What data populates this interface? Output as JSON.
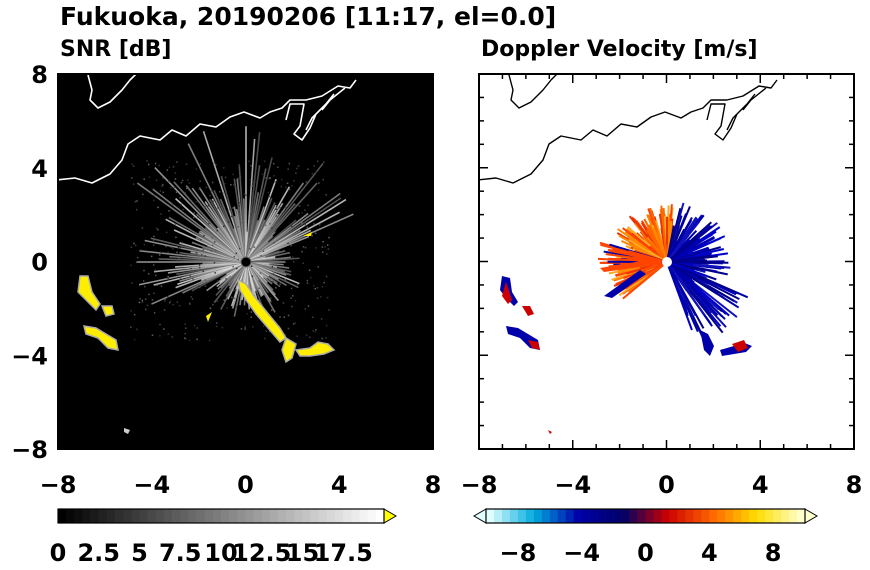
{
  "figure_title": "Fukuoka, 20190206 [11:17, el=0.0]",
  "chart_data": [
    {
      "type": "heatmap",
      "title": "SNR [dB]",
      "xlim": [
        -8,
        8
      ],
      "ylim": [
        -8,
        8
      ],
      "x_ticks": [
        -8,
        -4,
        0,
        4,
        8
      ],
      "y_ticks": [
        -8,
        -4,
        0,
        4,
        8
      ],
      "background": "#000000",
      "colorbar": {
        "ticks": [
          "0",
          "2.5",
          "5",
          "7.5",
          "10",
          "12.5",
          "15",
          "17.5"
        ],
        "range": [
          0,
          20
        ],
        "extend": "max",
        "colors": [
          "#000000",
          "#ffffff",
          "#ffff00"
        ]
      }
    },
    {
      "type": "heatmap",
      "title": "Doppler Velocity [m/s]",
      "xlim": [
        -8,
        8
      ],
      "ylim": [
        -8,
        8
      ],
      "x_ticks": [
        -8,
        -4,
        0,
        4,
        8
      ],
      "y_ticks": [
        -8,
        -4,
        0,
        4,
        8
      ],
      "background": "#ffffff",
      "colorbar": {
        "ticks": [
          "−8",
          "−4",
          "0",
          "4",
          "8"
        ],
        "range": [
          -10,
          10
        ],
        "extend": "both",
        "colors": [
          "#e0ffff",
          "#00aadd",
          "#0000aa",
          "#000066",
          "#cc0000",
          "#ff6600",
          "#ffdd00",
          "#ffffcc"
        ]
      }
    }
  ]
}
